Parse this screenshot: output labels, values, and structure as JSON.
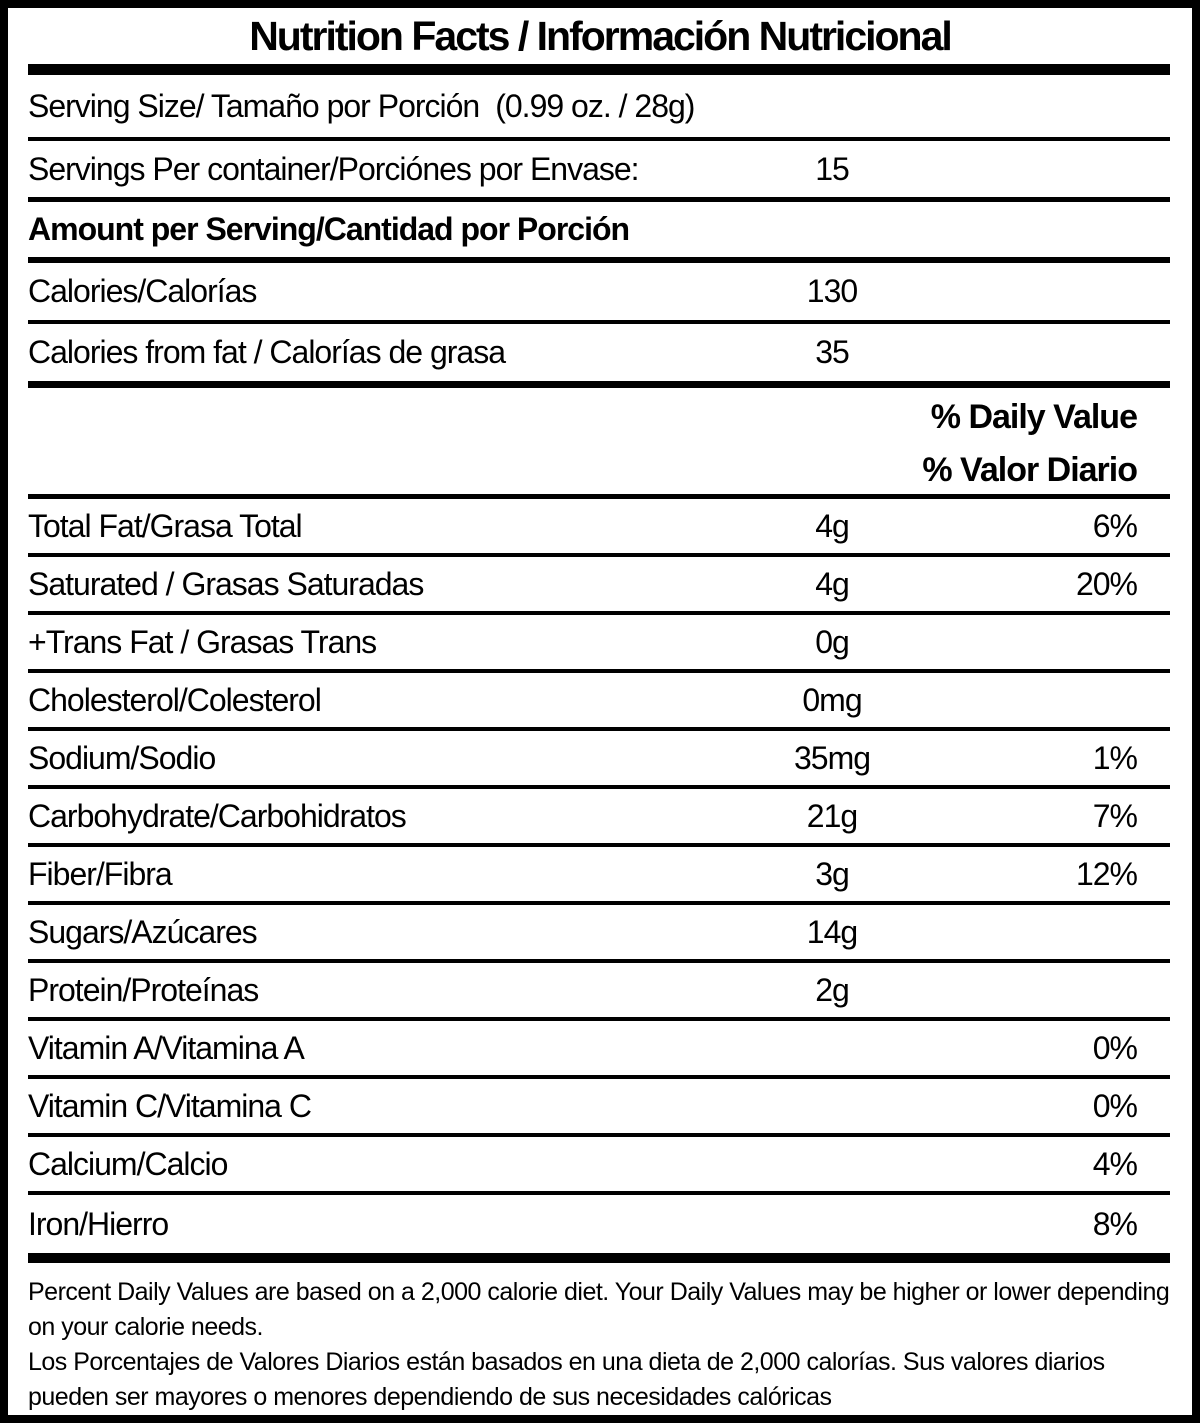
{
  "label": {
    "title": "Nutrition Facts / Información Nutricional",
    "serving_size": {
      "label": "Serving Size/ Tamaño por Porción",
      "value": "(0.99 oz. / 28g)"
    },
    "servings_per_container": {
      "label": "Servings Per container/Porciónes por Envase:",
      "value": "15"
    },
    "amount_per_serving_header": "Amount per Serving/Cantidad por Porción",
    "calories": {
      "label": "Calories/Calorías",
      "value": "130"
    },
    "calories_from_fat": {
      "label": "Calories from fat / Calorías de grasa",
      "value": "35"
    },
    "daily_value_header_en": "% Daily Value",
    "daily_value_header_es": "% Valor Diario",
    "nutrients": [
      {
        "label": "Total Fat/Grasa Total",
        "amount": "4g",
        "percent": "6%"
      },
      {
        "label": "Saturated / Grasas Saturadas",
        "amount": "4g",
        "percent": "20%"
      },
      {
        "label": "+Trans Fat / Grasas Trans",
        "amount": "0g",
        "percent": ""
      },
      {
        "label": "Cholesterol/Colesterol",
        "amount": "0mg",
        "percent": ""
      },
      {
        "label": "Sodium/Sodio",
        "amount": "35mg",
        "percent": "1%"
      },
      {
        "label": "Carbohydrate/Carbohidratos",
        "amount": "21g",
        "percent": "7%"
      },
      {
        "label": "Fiber/Fibra",
        "amount": "3g",
        "percent": "12%"
      },
      {
        "label": "Sugars/Azúcares",
        "amount": "14g",
        "percent": ""
      },
      {
        "label": "Protein/Proteínas",
        "amount": "2g",
        "percent": ""
      },
      {
        "label": "Vitamin A/Vitamina A",
        "amount": "",
        "percent": "0%"
      },
      {
        "label": "Vitamin C/Vitamina C",
        "amount": "",
        "percent": "0%"
      },
      {
        "label": "Calcium/Calcio",
        "amount": "",
        "percent": "4%"
      },
      {
        "label": "Iron/Hierro",
        "amount": "",
        "percent": "8%"
      }
    ],
    "footnotes": {
      "en": "Percent Daily Values are based on a 2,000 calorie diet. Your Daily Values may be higher or lower depending on your calorie needs.",
      "es": "Los Porcentajes de Valores Diarios están basados en una dieta de 2,000 calorías. Sus valores diarios pueden ser mayores o menores dependiendo de sus necesidades calóricas"
    },
    "colors": {
      "ink": "#000000",
      "paper": "#ffffff"
    }
  }
}
